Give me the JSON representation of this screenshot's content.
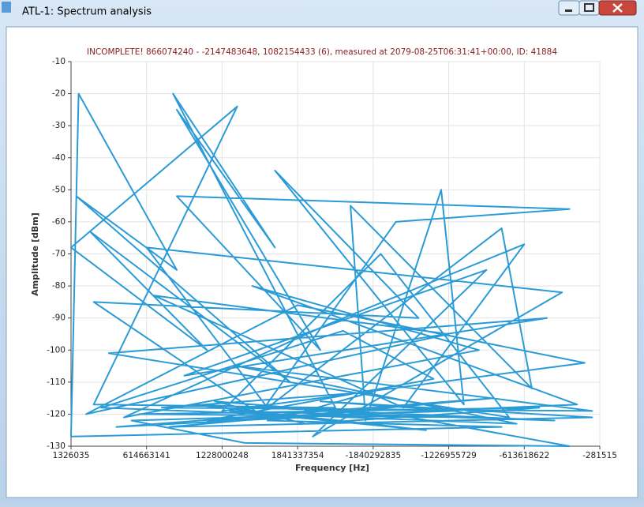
{
  "window": {
    "title": "ATL-1: Spectrum analysis"
  },
  "chart_data": {
    "type": "line",
    "title": "INCOMPLETE! 866074240 - -2147483648, 1082154433 (6), measured at 2079-08-25T06:31:41+00:00, ID: 41884",
    "xlabel": "Frequency [Hz]",
    "ylabel": "Amplitude [dBm]",
    "xlim": [
      0,
      7
    ],
    "xticks": [
      {
        "value": 0,
        "label": "1326035"
      },
      {
        "value": 1,
        "label": "614663141"
      },
      {
        "value": 2,
        "label": "1228000248"
      },
      {
        "value": 3,
        "label": "1841337354"
      },
      {
        "value": 4,
        "label": "-1840292835"
      },
      {
        "value": 5,
        "label": "-1226955729"
      },
      {
        "value": 6,
        "label": "-613618622"
      },
      {
        "value": 7,
        "label": "-281515"
      }
    ],
    "ylim": [
      -130,
      -10
    ],
    "yticks": [
      -130,
      -120,
      -110,
      -100,
      -90,
      -80,
      -70,
      -60,
      -50,
      -40,
      -30,
      -20,
      -10
    ],
    "grid": true,
    "series": [
      {
        "color": "#2b9bd6",
        "x": [
          0.0,
          0.1,
          1.4,
          0.07,
          2.9,
          0.25,
          1.8,
          0.0,
          2.2,
          0.3,
          3.5,
          1.35,
          2.7,
          1.4,
          3.3,
          1.4,
          6.6,
          4.3,
          2.5,
          0.3,
          4.6,
          2.7,
          5.2,
          4.9,
          3.9,
          3.7,
          6.1,
          5.7,
          2.6,
          1.0,
          6.5,
          3.2,
          5.5,
          1.5,
          6.3,
          0.5,
          5.8,
          4.1,
          2.0,
          6.8,
          3.0,
          0.2,
          5.0,
          1.1,
          4.4,
          6.0,
          3.4,
          0.7,
          5.4,
          2.4,
          6.7,
          1.8,
          4.8,
          3.6,
          0.4,
          5.9,
          2.2,
          6.9,
          1.2,
          4.0,
          2.8,
          5.6,
          0.6,
          3.8,
          6.4,
          1.6,
          4.7,
          2.1,
          5.3,
          0.9,
          6.2,
          3.1,
          1.9,
          4.5,
          6.6,
          2.3,
          0.8,
          5.1,
          3.3,
          6.9,
          1.3,
          4.2,
          2.6,
          5.7,
          0.0
        ],
        "values": [
          -127,
          -20,
          -75,
          -52,
          -110,
          -63,
          -100,
          -68,
          -24,
          -117,
          -118,
          -20,
          -68,
          -25,
          -100,
          -52,
          -56,
          -60,
          -120,
          -85,
          -90,
          -44,
          -117,
          -50,
          -122,
          -55,
          -112,
          -62,
          -118,
          -68,
          -82,
          -127,
          -75,
          -108,
          -90,
          -101,
          -121,
          -70,
          -119,
          -104,
          -86,
          -120,
          -95,
          -83,
          -118,
          -67,
          -92,
          -121,
          -100,
          -80,
          -117,
          -122,
          -109,
          -94,
          -118,
          -123,
          -105,
          -119,
          -118,
          -113,
          -121,
          -115,
          -124,
          -120,
          -122,
          -117,
          -125,
          -119,
          -121,
          -120,
          -118,
          -123,
          -116,
          -121,
          -130,
          -129,
          -122,
          -119,
          -116,
          -121,
          -124,
          -118,
          -122,
          -124,
          -127
        ]
      }
    ]
  }
}
